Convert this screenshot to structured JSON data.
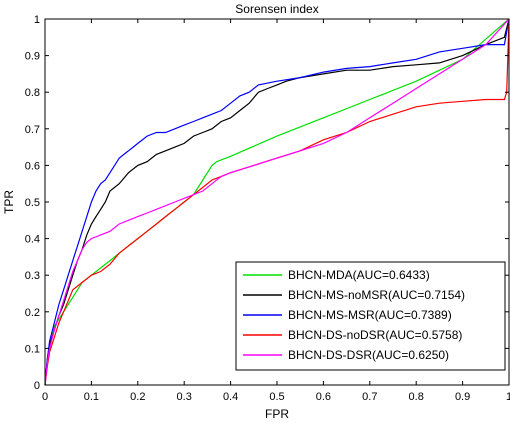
{
  "chart_data": {
    "type": "line",
    "title": "Sorensen index",
    "xlabel": "FPR",
    "ylabel": "TPR",
    "xlim": [
      0,
      1
    ],
    "ylim": [
      0,
      1
    ],
    "xticks": [
      "0",
      "0.1",
      "0.2",
      "0.3",
      "0.4",
      "0.5",
      "0.6",
      "0.7",
      "0.8",
      "0.9",
      "1"
    ],
    "yticks": [
      "0",
      "0.1",
      "0.2",
      "0.3",
      "0.4",
      "0.5",
      "0.6",
      "0.7",
      "0.8",
      "0.9",
      "1"
    ],
    "grid": false,
    "legend_position": "lower-right",
    "series": [
      {
        "name": "BHCN-MDA(AUC=0.6433)",
        "color": "#00e000",
        "points": [
          [
            0,
            0
          ],
          [
            0.005,
            0.06
          ],
          [
            0.01,
            0.1
          ],
          [
            0.015,
            0.13
          ],
          [
            0.02,
            0.16
          ],
          [
            0.03,
            0.18
          ],
          [
            0.04,
            0.2
          ],
          [
            0.05,
            0.22
          ],
          [
            0.06,
            0.24
          ],
          [
            0.07,
            0.26
          ],
          [
            0.08,
            0.28
          ],
          [
            0.1,
            0.3
          ],
          [
            0.12,
            0.32
          ],
          [
            0.14,
            0.34
          ],
          [
            0.16,
            0.36
          ],
          [
            0.18,
            0.38
          ],
          [
            0.2,
            0.4
          ],
          [
            0.22,
            0.42
          ],
          [
            0.24,
            0.44
          ],
          [
            0.26,
            0.46
          ],
          [
            0.28,
            0.48
          ],
          [
            0.3,
            0.5
          ],
          [
            0.32,
            0.52
          ],
          [
            0.34,
            0.56
          ],
          [
            0.36,
            0.6
          ],
          [
            0.37,
            0.61
          ],
          [
            0.4,
            0.625
          ],
          [
            0.5,
            0.68
          ],
          [
            0.6,
            0.73
          ],
          [
            0.7,
            0.78
          ],
          [
            0.8,
            0.83
          ],
          [
            0.9,
            0.89
          ],
          [
            1.0,
            1.0
          ]
        ]
      },
      {
        "name": "BHCN-MS-noMSR(AUC=0.7154)",
        "color": "#000000",
        "points": [
          [
            0,
            0
          ],
          [
            0.005,
            0.07
          ],
          [
            0.01,
            0.11
          ],
          [
            0.02,
            0.15
          ],
          [
            0.03,
            0.19
          ],
          [
            0.04,
            0.22
          ],
          [
            0.05,
            0.26
          ],
          [
            0.06,
            0.3
          ],
          [
            0.07,
            0.34
          ],
          [
            0.08,
            0.37
          ],
          [
            0.09,
            0.41
          ],
          [
            0.1,
            0.44
          ],
          [
            0.11,
            0.46
          ],
          [
            0.12,
            0.48
          ],
          [
            0.13,
            0.5
          ],
          [
            0.14,
            0.53
          ],
          [
            0.16,
            0.55
          ],
          [
            0.18,
            0.58
          ],
          [
            0.2,
            0.6
          ],
          [
            0.22,
            0.61
          ],
          [
            0.24,
            0.63
          ],
          [
            0.26,
            0.64
          ],
          [
            0.28,
            0.65
          ],
          [
            0.3,
            0.66
          ],
          [
            0.32,
            0.68
          ],
          [
            0.34,
            0.69
          ],
          [
            0.36,
            0.7
          ],
          [
            0.38,
            0.72
          ],
          [
            0.4,
            0.73
          ],
          [
            0.42,
            0.75
          ],
          [
            0.44,
            0.77
          ],
          [
            0.46,
            0.8
          ],
          [
            0.48,
            0.81
          ],
          [
            0.5,
            0.82
          ],
          [
            0.52,
            0.83
          ],
          [
            0.55,
            0.84
          ],
          [
            0.6,
            0.85
          ],
          [
            0.65,
            0.86
          ],
          [
            0.7,
            0.86
          ],
          [
            0.75,
            0.87
          ],
          [
            0.8,
            0.875
          ],
          [
            0.85,
            0.88
          ],
          [
            0.9,
            0.9
          ],
          [
            0.95,
            0.93
          ],
          [
            0.99,
            0.95
          ],
          [
            1.0,
            1.0
          ]
        ]
      },
      {
        "name": "BHCN-MS-MSR(AUC=0.7389)",
        "color": "#0000ff",
        "points": [
          [
            0,
            0
          ],
          [
            0.005,
            0.07
          ],
          [
            0.01,
            0.12
          ],
          [
            0.02,
            0.17
          ],
          [
            0.03,
            0.22
          ],
          [
            0.04,
            0.26
          ],
          [
            0.05,
            0.3
          ],
          [
            0.06,
            0.34
          ],
          [
            0.07,
            0.38
          ],
          [
            0.08,
            0.42
          ],
          [
            0.09,
            0.46
          ],
          [
            0.1,
            0.5
          ],
          [
            0.11,
            0.53
          ],
          [
            0.12,
            0.55
          ],
          [
            0.13,
            0.56
          ],
          [
            0.14,
            0.58
          ],
          [
            0.15,
            0.6
          ],
          [
            0.16,
            0.62
          ],
          [
            0.17,
            0.63
          ],
          [
            0.18,
            0.64
          ],
          [
            0.19,
            0.65
          ],
          [
            0.2,
            0.66
          ],
          [
            0.22,
            0.68
          ],
          [
            0.24,
            0.69
          ],
          [
            0.26,
            0.69
          ],
          [
            0.28,
            0.7
          ],
          [
            0.3,
            0.71
          ],
          [
            0.32,
            0.72
          ],
          [
            0.34,
            0.73
          ],
          [
            0.36,
            0.74
          ],
          [
            0.38,
            0.75
          ],
          [
            0.4,
            0.77
          ],
          [
            0.42,
            0.79
          ],
          [
            0.44,
            0.8
          ],
          [
            0.46,
            0.82
          ],
          [
            0.5,
            0.83
          ],
          [
            0.55,
            0.84
          ],
          [
            0.6,
            0.855
          ],
          [
            0.65,
            0.865
          ],
          [
            0.7,
            0.87
          ],
          [
            0.75,
            0.88
          ],
          [
            0.8,
            0.89
          ],
          [
            0.85,
            0.91
          ],
          [
            0.9,
            0.92
          ],
          [
            0.95,
            0.93
          ],
          [
            0.99,
            0.93
          ],
          [
            1.0,
            1.0
          ]
        ]
      },
      {
        "name": "BHCN-DS-noDSR(AUC=0.5758)",
        "color": "#ff0000",
        "points": [
          [
            0,
            0
          ],
          [
            0.005,
            0.05
          ],
          [
            0.01,
            0.09
          ],
          [
            0.02,
            0.13
          ],
          [
            0.03,
            0.17
          ],
          [
            0.04,
            0.2
          ],
          [
            0.05,
            0.23
          ],
          [
            0.06,
            0.26
          ],
          [
            0.08,
            0.28
          ],
          [
            0.1,
            0.3
          ],
          [
            0.12,
            0.31
          ],
          [
            0.14,
            0.33
          ],
          [
            0.16,
            0.36
          ],
          [
            0.18,
            0.38
          ],
          [
            0.2,
            0.4
          ],
          [
            0.22,
            0.42
          ],
          [
            0.24,
            0.44
          ],
          [
            0.26,
            0.46
          ],
          [
            0.28,
            0.48
          ],
          [
            0.3,
            0.5
          ],
          [
            0.32,
            0.52
          ],
          [
            0.34,
            0.54
          ],
          [
            0.36,
            0.56
          ],
          [
            0.38,
            0.57
          ],
          [
            0.4,
            0.58
          ],
          [
            0.45,
            0.6
          ],
          [
            0.5,
            0.62
          ],
          [
            0.55,
            0.64
          ],
          [
            0.6,
            0.67
          ],
          [
            0.65,
            0.69
          ],
          [
            0.7,
            0.72
          ],
          [
            0.75,
            0.74
          ],
          [
            0.8,
            0.76
          ],
          [
            0.85,
            0.77
          ],
          [
            0.9,
            0.775
          ],
          [
            0.95,
            0.78
          ],
          [
            0.99,
            0.78
          ],
          [
            0.995,
            0.8
          ],
          [
            1.0,
            1.0
          ]
        ]
      },
      {
        "name": "BHCN-DS-DSR(AUC=0.6250)",
        "color": "#ff00ff",
        "points": [
          [
            0,
            0
          ],
          [
            0.005,
            0.06
          ],
          [
            0.01,
            0.1
          ],
          [
            0.02,
            0.15
          ],
          [
            0.03,
            0.19
          ],
          [
            0.04,
            0.23
          ],
          [
            0.05,
            0.27
          ],
          [
            0.06,
            0.31
          ],
          [
            0.07,
            0.34
          ],
          [
            0.08,
            0.37
          ],
          [
            0.09,
            0.39
          ],
          [
            0.1,
            0.4
          ],
          [
            0.12,
            0.41
          ],
          [
            0.14,
            0.42
          ],
          [
            0.16,
            0.44
          ],
          [
            0.18,
            0.45
          ],
          [
            0.2,
            0.46
          ],
          [
            0.22,
            0.47
          ],
          [
            0.24,
            0.48
          ],
          [
            0.26,
            0.49
          ],
          [
            0.28,
            0.5
          ],
          [
            0.3,
            0.51
          ],
          [
            0.32,
            0.52
          ],
          [
            0.34,
            0.53
          ],
          [
            0.36,
            0.55
          ],
          [
            0.38,
            0.57
          ],
          [
            0.4,
            0.58
          ],
          [
            0.45,
            0.6
          ],
          [
            0.5,
            0.62
          ],
          [
            0.55,
            0.64
          ],
          [
            0.6,
            0.66
          ],
          [
            0.65,
            0.69
          ],
          [
            0.7,
            0.73
          ],
          [
            0.75,
            0.77
          ],
          [
            0.8,
            0.81
          ],
          [
            0.85,
            0.85
          ],
          [
            0.9,
            0.89
          ],
          [
            0.95,
            0.93
          ],
          [
            1.0,
            1.0
          ]
        ]
      }
    ]
  }
}
